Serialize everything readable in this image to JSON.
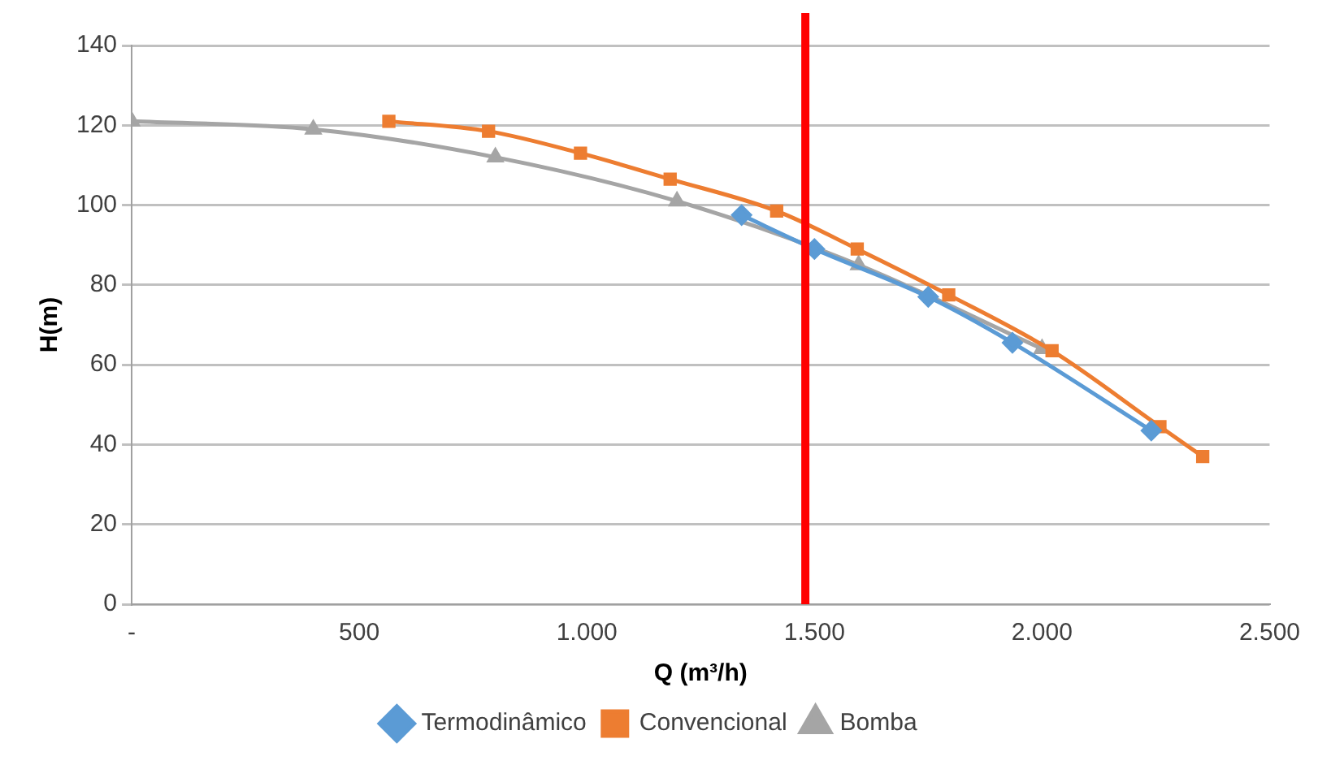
{
  "chart_data": {
    "type": "line",
    "xlabel": "Q (m³/h)",
    "ylabel": "H(m)",
    "xlim": [
      0,
      2500
    ],
    "xticks": [
      {
        "value": 0,
        "label": "-"
      },
      500,
      {
        "value": 1000,
        "label": "1.000"
      },
      {
        "value": 1500,
        "label": "1.500"
      },
      {
        "value": 2000,
        "label": "2.000"
      },
      {
        "value": 2500,
        "label": "2.500"
      }
    ],
    "ylim": [
      0,
      140
    ],
    "yticks": [
      0,
      20,
      40,
      60,
      80,
      100,
      120,
      140
    ],
    "grid": "y",
    "legend": "bottom",
    "series": [
      {
        "name": "Termodinâmico",
        "color": "#5b9bd5",
        "marker": "diamond",
        "x": [
          1340,
          1500,
          1750,
          1935,
          2240
        ],
        "values": [
          97.5,
          89,
          77,
          65.5,
          43.5
        ]
      },
      {
        "name": "Convencional",
        "color": "#ed7d31",
        "marker": "square",
        "x": [
          565,
          784,
          986,
          1183,
          1417,
          1594,
          1795,
          2022,
          2259,
          2353
        ],
        "values": [
          121,
          118.5,
          113,
          106.5,
          98.5,
          89,
          77.5,
          63.5,
          44.5,
          37
        ]
      },
      {
        "name": "Bomba",
        "color": "#a5a5a5",
        "marker": "triangle",
        "x": [
          0,
          399,
          799,
          1198,
          1597,
          2000
        ],
        "values": [
          121,
          119,
          112,
          101,
          85,
          64
        ]
      }
    ],
    "ref_lines": [
      {
        "axis": "x",
        "value": 1480,
        "color": "#ff0000"
      }
    ]
  }
}
